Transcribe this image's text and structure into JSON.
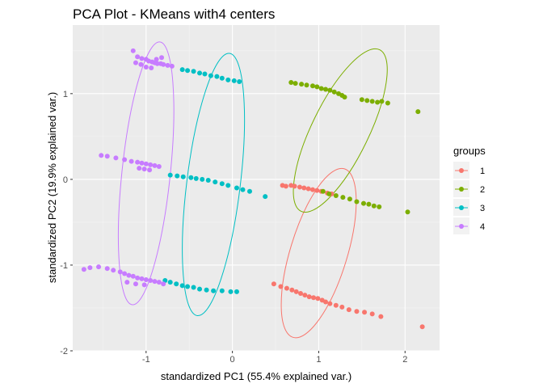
{
  "chart_data": {
    "type": "scatter",
    "title": "PCA Plot - KMeans with4 centers",
    "xlabel": "standardized PC1 (55.4% explained var.)",
    "ylabel": "standardized PC2 (19.9% explained var.)",
    "xlim": [
      -1.85,
      2.4
    ],
    "ylim": [
      -2.0,
      1.8
    ],
    "x_ticks": [
      -1,
      0,
      1,
      2
    ],
    "y_ticks": [
      -2,
      -1,
      0,
      1
    ],
    "x_tick_labels": [
      "-1",
      "0",
      "1",
      "2"
    ],
    "y_tick_labels": [
      "-2",
      "-1",
      "0",
      "1"
    ],
    "grid": true,
    "legend": {
      "title": "groups",
      "position": "right"
    },
    "series": [
      {
        "name": "1",
        "color": "#F8766D",
        "points": [
          [
            0.58,
            -0.07
          ],
          [
            0.62,
            -0.08
          ],
          [
            0.68,
            -0.07
          ],
          [
            0.72,
            -0.08
          ],
          [
            0.78,
            -0.09
          ],
          [
            0.83,
            -0.1
          ],
          [
            0.88,
            -0.11
          ],
          [
            0.93,
            -0.12
          ],
          [
            0.98,
            -0.13
          ],
          [
            1.03,
            -0.14
          ],
          [
            1.1,
            -0.16
          ],
          [
            1.15,
            -0.17
          ],
          [
            0.48,
            -1.22
          ],
          [
            0.56,
            -1.25
          ],
          [
            0.63,
            -1.27
          ],
          [
            0.69,
            -1.29
          ],
          [
            0.74,
            -1.31
          ],
          [
            0.79,
            -1.33
          ],
          [
            0.84,
            -1.35
          ],
          [
            0.89,
            -1.37
          ],
          [
            0.94,
            -1.38
          ],
          [
            0.99,
            -1.39
          ],
          [
            1.04,
            -1.41
          ],
          [
            1.08,
            -1.43
          ],
          [
            1.13,
            -1.45
          ],
          [
            1.2,
            -1.47
          ],
          [
            1.27,
            -1.49
          ],
          [
            1.35,
            -1.52
          ],
          [
            1.44,
            -1.54
          ],
          [
            1.53,
            -1.55
          ],
          [
            1.62,
            -1.57
          ],
          [
            1.72,
            -1.6
          ],
          [
            2.2,
            -1.72
          ]
        ],
        "ellipse": {
          "cx": 1.0,
          "cy": -0.86,
          "rx": 1.02,
          "ry": 0.33,
          "angle_deg": -73
        }
      },
      {
        "name": "2",
        "color": "#7CAE00",
        "points": [
          [
            0.68,
            1.13
          ],
          [
            0.73,
            1.12
          ],
          [
            0.8,
            1.11
          ],
          [
            0.86,
            1.1
          ],
          [
            0.93,
            1.09
          ],
          [
            0.98,
            1.08
          ],
          [
            1.03,
            1.06
          ],
          [
            1.08,
            1.05
          ],
          [
            1.13,
            1.04
          ],
          [
            1.18,
            1.02
          ],
          [
            1.23,
            1.0
          ],
          [
            1.27,
            0.98
          ],
          [
            1.3,
            0.96
          ],
          [
            1.5,
            0.93
          ],
          [
            1.56,
            0.92
          ],
          [
            1.62,
            0.91
          ],
          [
            1.68,
            0.9
          ],
          [
            1.73,
            0.91
          ],
          [
            1.8,
            0.89
          ],
          [
            2.15,
            0.79
          ],
          [
            1.05,
            -0.14
          ],
          [
            1.12,
            -0.17
          ],
          [
            1.2,
            -0.19
          ],
          [
            1.28,
            -0.21
          ],
          [
            1.36,
            -0.23
          ],
          [
            1.44,
            -0.26
          ],
          [
            1.52,
            -0.28
          ],
          [
            1.58,
            -0.29
          ],
          [
            1.64,
            -0.31
          ],
          [
            1.7,
            -0.32
          ],
          [
            2.03,
            -0.38
          ]
        ],
        "ellipse": {
          "cx": 1.25,
          "cy": 0.57,
          "rx": 1.04,
          "ry": 0.33,
          "angle_deg": -64
        }
      },
      {
        "name": "3",
        "color": "#00BFC4",
        "points": [
          [
            -0.58,
            1.28
          ],
          [
            -0.52,
            1.27
          ],
          [
            -0.45,
            1.26
          ],
          [
            -0.38,
            1.24
          ],
          [
            -0.32,
            1.23
          ],
          [
            -0.25,
            1.21
          ],
          [
            -0.18,
            1.2
          ],
          [
            -0.12,
            1.18
          ],
          [
            -0.05,
            1.16
          ],
          [
            0.02,
            1.15
          ],
          [
            0.08,
            1.14
          ],
          [
            -0.72,
            0.05
          ],
          [
            -0.64,
            0.04
          ],
          [
            -0.57,
            0.03
          ],
          [
            -0.48,
            0.02
          ],
          [
            -0.42,
            0.01
          ],
          [
            -0.35,
            0.0
          ],
          [
            -0.28,
            -0.01
          ],
          [
            -0.2,
            -0.03
          ],
          [
            -0.12,
            -0.05
          ],
          [
            -0.05,
            -0.07
          ],
          [
            0.05,
            -0.1
          ],
          [
            0.12,
            -0.12
          ],
          [
            0.2,
            -0.14
          ],
          [
            0.38,
            -0.2
          ],
          [
            -0.78,
            -1.18
          ],
          [
            -0.72,
            -1.2
          ],
          [
            -0.65,
            -1.22
          ],
          [
            -0.58,
            -1.24
          ],
          [
            -0.52,
            -1.25
          ],
          [
            -0.45,
            -1.26
          ],
          [
            -0.38,
            -1.28
          ],
          [
            -0.3,
            -1.29
          ],
          [
            -0.22,
            -1.3
          ],
          [
            -0.12,
            -1.3
          ],
          [
            -0.02,
            -1.31
          ],
          [
            0.05,
            -1.31
          ]
        ],
        "ellipse": {
          "cx": -0.22,
          "cy": -0.06,
          "rx": 1.53,
          "ry": 0.31,
          "angle_deg": -83
        }
      },
      {
        "name": "4",
        "color": "#C77CFF",
        "points": [
          [
            -1.15,
            1.5
          ],
          [
            -1.1,
            1.43
          ],
          [
            -1.05,
            1.41
          ],
          [
            -1.0,
            1.4
          ],
          [
            -0.97,
            1.38
          ],
          [
            -0.93,
            1.37
          ],
          [
            -0.9,
            1.36
          ],
          [
            -0.87,
            1.35
          ],
          [
            -0.83,
            1.35
          ],
          [
            -0.8,
            1.34
          ],
          [
            -0.75,
            1.33
          ],
          [
            -0.7,
            1.32
          ],
          [
            -1.12,
            1.36
          ],
          [
            -1.06,
            1.34
          ],
          [
            -1.0,
            1.31
          ],
          [
            -0.94,
            1.3
          ],
          [
            -0.88,
            1.4
          ],
          [
            -0.82,
            1.42
          ],
          [
            -1.52,
            0.28
          ],
          [
            -1.45,
            0.27
          ],
          [
            -1.35,
            0.25
          ],
          [
            -1.25,
            0.23
          ],
          [
            -1.17,
            0.21
          ],
          [
            -1.1,
            0.2
          ],
          [
            -1.05,
            0.19
          ],
          [
            -1.0,
            0.18
          ],
          [
            -0.95,
            0.17
          ],
          [
            -0.9,
            0.16
          ],
          [
            -0.85,
            0.15
          ],
          [
            -1.08,
            0.13
          ],
          [
            -1.02,
            0.12
          ],
          [
            -0.96,
            0.11
          ],
          [
            -1.72,
            -1.05
          ],
          [
            -1.65,
            -1.03
          ],
          [
            -1.55,
            -1.02
          ],
          [
            -1.45,
            -1.04
          ],
          [
            -1.38,
            -1.06
          ],
          [
            -1.3,
            -1.08
          ],
          [
            -1.25,
            -1.1
          ],
          [
            -1.2,
            -1.12
          ],
          [
            -1.15,
            -1.13
          ],
          [
            -1.1,
            -1.15
          ],
          [
            -1.05,
            -1.16
          ],
          [
            -1.0,
            -1.17
          ],
          [
            -0.95,
            -1.18
          ],
          [
            -0.9,
            -1.19
          ],
          [
            -0.85,
            -1.2
          ],
          [
            -0.8,
            -1.22
          ],
          [
            -1.22,
            -1.2
          ],
          [
            -1.12,
            -1.22
          ],
          [
            -1.02,
            -1.23
          ]
        ],
        "ellipse": {
          "cx": -1.0,
          "cy": 0.07,
          "rx": 1.53,
          "ry": 0.28,
          "angle_deg": -84
        }
      }
    ]
  }
}
